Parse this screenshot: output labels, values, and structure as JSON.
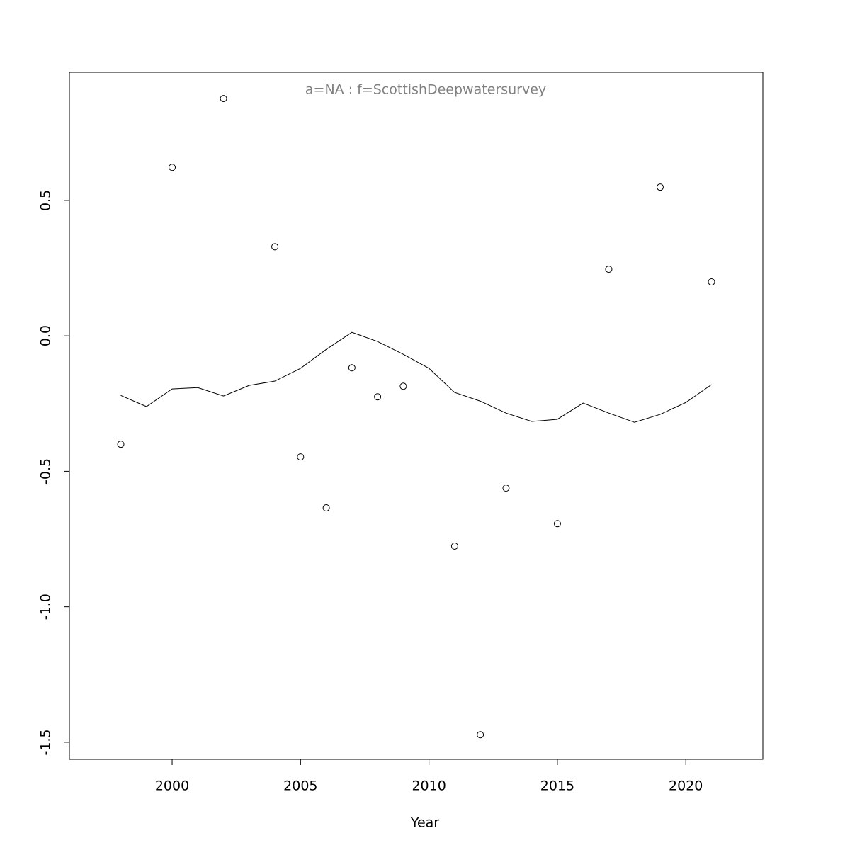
{
  "chart_data": {
    "type": "scatter",
    "title": "a=NA  :  f=ScottishDeepwatersurvey",
    "xlabel": "Year",
    "xlim": [
      1996,
      2023
    ],
    "ylim": [
      -1.563,
      0.973
    ],
    "xticks": [
      2000,
      2005,
      2010,
      2015,
      2020
    ],
    "yticks": [
      {
        "value": -1.5,
        "label": "-1.5"
      },
      {
        "value": -1,
        "label": "-1.0"
      },
      -0.5,
      {
        "value": 0,
        "label": "0.0"
      },
      0.5
    ],
    "series": [
      {
        "type": "scatter",
        "color": "#000000",
        "x": [
          1998,
          2000,
          2002,
          2004,
          2005,
          2006,
          2007,
          2008,
          2009,
          2011,
          2012,
          2013,
          2015,
          2017,
          2019,
          2021
        ],
        "values": [
          -0.4,
          0.622,
          0.876,
          0.329,
          -0.447,
          -0.635,
          -0.118,
          -0.225,
          -0.186,
          -0.776,
          -1.472,
          -0.562,
          -0.693,
          0.246,
          0.549,
          0.199
        ]
      },
      {
        "type": "line",
        "color": "#000000",
        "x": [
          1998,
          1999,
          2000,
          2001,
          2002,
          2003,
          2004,
          2005,
          2006,
          2007,
          2008,
          2009,
          2010,
          2011,
          2012,
          2013,
          2014,
          2015,
          2016,
          2017,
          2018,
          2019,
          2020,
          2021
        ],
        "values": [
          -0.22,
          -0.261,
          -0.196,
          -0.191,
          -0.222,
          -0.183,
          -0.167,
          -0.12,
          -0.05,
          0.013,
          -0.021,
          -0.068,
          -0.12,
          -0.209,
          -0.241,
          -0.285,
          -0.316,
          -0.308,
          -0.248,
          -0.285,
          -0.319,
          -0.29,
          -0.246,
          -0.18
        ]
      }
    ]
  }
}
